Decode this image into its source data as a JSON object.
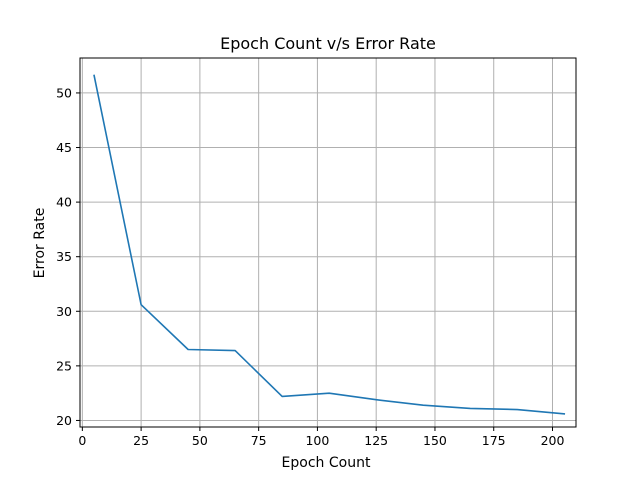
{
  "chart_data": {
    "type": "line",
    "title": "Epoch Count v/s Error Rate",
    "xlabel": "Epoch Count",
    "ylabel": "Error Rate",
    "xlim": [
      -1,
      210
    ],
    "ylim": [
      19.4,
      53.2
    ],
    "xticks": [
      0,
      25,
      50,
      75,
      100,
      125,
      150,
      175,
      200
    ],
    "yticks": [
      20,
      25,
      30,
      35,
      40,
      45,
      50
    ],
    "grid": true,
    "series": [
      {
        "color": "#1f77b4",
        "x": [
          5,
          25,
          45,
          65,
          85,
          105,
          125,
          145,
          165,
          185,
          205
        ],
        "y": [
          51.6,
          30.6,
          26.5,
          26.4,
          22.2,
          22.5,
          21.9,
          21.4,
          21.1,
          21.0,
          20.6
        ]
      }
    ]
  }
}
